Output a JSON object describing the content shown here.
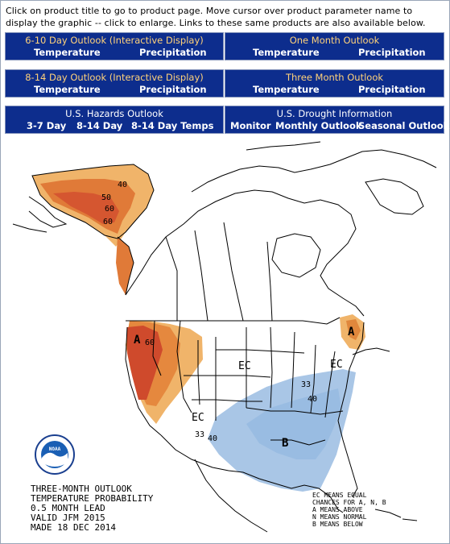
{
  "intro_text": "Click on product title to go to product page. Move cursor over product parameter name to display the graphic -- click to enlarge. Links to these same products are also available below.",
  "nav": {
    "six_ten": {
      "title": "6-10 Day Outlook   (Interactive Display)",
      "links": [
        "Temperature",
        "Precipitation"
      ]
    },
    "one_month": {
      "title": "One Month Outlook",
      "links": [
        "Temperature",
        "Precipitation"
      ]
    },
    "eight_fourteen": {
      "title": "8-14 Day Outlook   (Interactive Display)",
      "links": [
        "Temperature",
        "Precipitation"
      ]
    },
    "three_month": {
      "title": "Three Month Outlook",
      "links": [
        "Temperature",
        "Precipitation"
      ]
    },
    "hazards": {
      "title": "U.S. Hazards Outlook",
      "links": [
        "3-7 Day",
        "8-14 Day",
        "8-14 Day Temps"
      ]
    },
    "drought": {
      "title": "U.S. Drought Information",
      "links": [
        "Monitor",
        "Monthly Outlook",
        "Seasonal Outlook"
      ]
    }
  },
  "map": {
    "caption": [
      "THREE-MONTH OUTLOOK",
      "TEMPERATURE PROBABILITY",
      "0.5 MONTH LEAD",
      "VALID JFM 2015",
      "MADE 18 DEC 2014"
    ],
    "legend": [
      "EC MEANS EQUAL",
      "CHANCES FOR A, N, B",
      "A MEANS ABOVE",
      "N MEANS NORMAL",
      "B MEANS BELOW"
    ],
    "labels": {
      "a_west": "A",
      "a_east": "A",
      "b_south": "B",
      "ec_central": "EC",
      "ec_east": "EC",
      "ec_south": "EC",
      "alaska_40": "40",
      "alaska_50": "50",
      "alaska_60a": "60",
      "alaska_60b": "60",
      "west_60": "60",
      "east_33": "33",
      "east_40": "40",
      "south_33": "33",
      "south_40": "40"
    },
    "logo_text": "NOAA",
    "colors": {
      "above_light": "#f0b46a",
      "above_mid": "#e07a38",
      "above_dark": "#c9422a",
      "below_light": "#a9c6e6",
      "below_mid": "#8fb1da",
      "nav_bg": "#0d2d8d"
    }
  }
}
